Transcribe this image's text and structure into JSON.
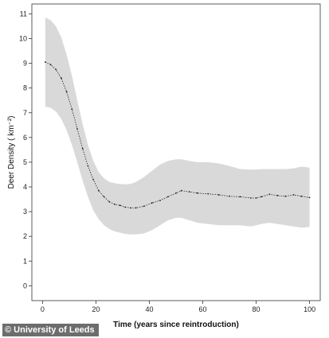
{
  "chart_data": {
    "type": "line",
    "title": "",
    "xlabel": "Time (years since reintroduction)",
    "ylabel": "Deer Density ( km⁻²)",
    "xlim": [
      -4,
      104
    ],
    "ylim": [
      -0.6,
      11.4
    ],
    "x_ticks": [
      0,
      20,
      40,
      60,
      80,
      100
    ],
    "y_ticks": [
      0,
      1,
      2,
      3,
      4,
      5,
      6,
      7,
      8,
      9,
      10,
      11
    ],
    "grid": false,
    "legend": "none",
    "colors": {
      "band": "#d9d9d9",
      "line": "#222222",
      "frame": "#333333"
    },
    "series": [
      {
        "kind": "mean",
        "x": [
          1,
          3,
          5,
          7,
          9,
          11,
          13,
          15,
          17,
          19,
          21,
          23,
          25,
          27,
          29,
          31,
          33,
          35,
          38,
          41,
          44,
          47,
          50,
          52,
          55,
          58,
          62,
          66,
          70,
          74,
          78,
          80,
          82,
          85,
          88,
          91,
          94,
          97,
          100
        ],
        "y": [
          9.05,
          8.95,
          8.75,
          8.4,
          7.85,
          7.15,
          6.35,
          5.55,
          4.85,
          4.3,
          3.85,
          3.6,
          3.4,
          3.3,
          3.25,
          3.18,
          3.15,
          3.15,
          3.22,
          3.35,
          3.45,
          3.6,
          3.75,
          3.85,
          3.8,
          3.75,
          3.72,
          3.68,
          3.62,
          3.6,
          3.55,
          3.55,
          3.6,
          3.7,
          3.65,
          3.62,
          3.68,
          3.62,
          3.57
        ]
      },
      {
        "kind": "band",
        "x": [
          1,
          3,
          5,
          7,
          9,
          11,
          13,
          15,
          17,
          19,
          21,
          23,
          25,
          27,
          29,
          31,
          33,
          35,
          38,
          41,
          44,
          47,
          50,
          52,
          55,
          58,
          62,
          66,
          70,
          74,
          78,
          80,
          82,
          85,
          88,
          91,
          94,
          97,
          100
        ],
        "upper": [
          10.85,
          10.75,
          10.5,
          10.05,
          9.35,
          8.5,
          7.5,
          6.55,
          5.7,
          5.05,
          4.6,
          4.35,
          4.2,
          4.15,
          4.12,
          4.1,
          4.12,
          4.2,
          4.4,
          4.65,
          4.9,
          5.05,
          5.12,
          5.12,
          5.05,
          5.0,
          5.0,
          4.95,
          4.85,
          4.72,
          4.7,
          4.7,
          4.72,
          4.72,
          4.72,
          4.72,
          4.75,
          4.82,
          4.78
        ],
        "lower": [
          7.25,
          7.2,
          7.05,
          6.75,
          6.3,
          5.7,
          5.0,
          4.25,
          3.6,
          3.05,
          2.7,
          2.45,
          2.3,
          2.2,
          2.15,
          2.1,
          2.08,
          2.08,
          2.12,
          2.25,
          2.45,
          2.65,
          2.75,
          2.75,
          2.65,
          2.55,
          2.5,
          2.45,
          2.45,
          2.45,
          2.4,
          2.45,
          2.5,
          2.55,
          2.5,
          2.45,
          2.4,
          2.35,
          2.38
        ]
      }
    ]
  },
  "credit": "© University of Leeds"
}
